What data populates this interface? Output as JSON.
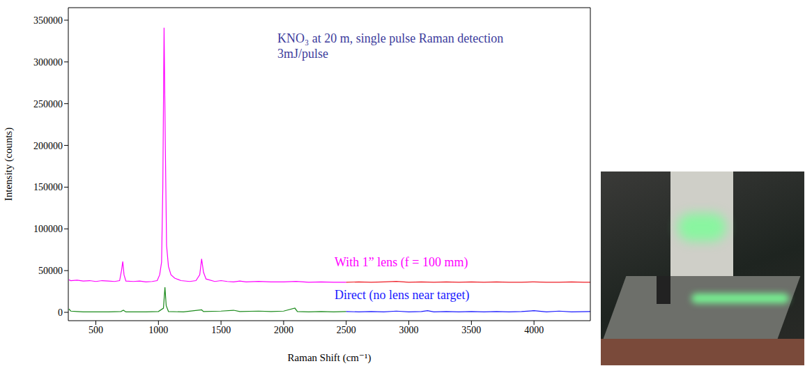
{
  "chart_data": {
    "type": "line",
    "annotations": [
      "KNO₃ at 20 m, single pulse Raman detection",
      "3mJ/pulse"
    ],
    "x_label": "Raman Shift (cm⁻¹)",
    "y_label": "Intensity (counts)",
    "xlim": [
      280,
      4450
    ],
    "xticks": [
      500,
      1000,
      1500,
      2000,
      2500,
      3000,
      3500,
      4000
    ],
    "ylim": [
      -10000,
      365000
    ],
    "yticks": [
      0,
      50000,
      100000,
      150000,
      200000,
      250000,
      300000,
      350000
    ],
    "grid": false,
    "series": [
      {
        "name": "With 1” lens (f = 100 mm)",
        "color": "#ff00ff",
        "x": [
          285,
          300,
          350,
          400,
          450,
          500,
          550,
          600,
          650,
          690,
          705,
          715,
          725,
          740,
          800,
          850,
          900,
          950,
          990,
          1010,
          1025,
          1035,
          1045,
          1055,
          1065,
          1080,
          1100,
          1130,
          1180,
          1250,
          1300,
          1330,
          1345,
          1360,
          1380,
          1450,
          1500,
          1550,
          1600,
          1650,
          1700,
          1800,
          1900,
          2000,
          2100,
          2200,
          2300,
          2400,
          2500
        ],
        "values": [
          39000,
          38000,
          38500,
          37500,
          38000,
          37000,
          38000,
          37500,
          37000,
          38000,
          50000,
          61000,
          45000,
          37500,
          37000,
          37500,
          36500,
          37000,
          38000,
          45000,
          60000,
          150000,
          341000,
          200000,
          80000,
          55000,
          45000,
          41000,
          38000,
          37000,
          38000,
          45000,
          64000,
          48000,
          40000,
          37000,
          38000,
          37000,
          36500,
          37500,
          36500,
          37000,
          36500,
          36500,
          37000,
          36000,
          36500,
          36000,
          36000
        ]
      },
      {
        "color": "#ee1c24",
        "x": [
          2500,
          2600,
          2700,
          2800,
          2900,
          3000,
          3100,
          3200,
          3300,
          3400,
          3500,
          3600,
          3700,
          3800,
          3900,
          4000,
          4100,
          4200,
          4300,
          4400,
          4450
        ],
        "values": [
          36000,
          36500,
          36000,
          36500,
          37000,
          36000,
          36500,
          36000,
          36500,
          36000,
          36500,
          36000,
          36500,
          36000,
          36000,
          36500,
          36000,
          36000,
          36500,
          36000,
          36000
        ]
      },
      {
        "color": "#1a8a1a",
        "x": [
          285,
          300,
          350,
          400,
          500,
          600,
          700,
          720,
          740,
          800,
          900,
          1000,
          1040,
          1052,
          1062,
          1080,
          1200,
          1345,
          1360,
          1500,
          1600,
          1650,
          1800,
          1900,
          2000,
          2090,
          2110,
          2200,
          2300,
          2400,
          2500
        ],
        "values": [
          4000,
          1500,
          1000,
          500,
          500,
          500,
          1000,
          2500,
          500,
          500,
          500,
          1000,
          5000,
          30000,
          8000,
          1000,
          500,
          3000,
          1000,
          1500,
          2500,
          1000,
          1500,
          1000,
          1500,
          5000,
          1000,
          500,
          1000,
          500,
          1000
        ]
      },
      {
        "name": "Direct (no lens near target)",
        "color": "#1a1aff",
        "x": [
          2500,
          2600,
          2700,
          2800,
          2900,
          3000,
          3100,
          3150,
          3200,
          3300,
          3400,
          3500,
          3600,
          3700,
          3800,
          3900,
          4000,
          4100,
          4200,
          4300,
          4450
        ],
        "values": [
          1000,
          500,
          1000,
          500,
          1500,
          500,
          1000,
          2000,
          500,
          1000,
          500,
          1000,
          500,
          1000,
          500,
          1000,
          2000,
          500,
          1500,
          500,
          1000
        ]
      }
    ]
  }
}
